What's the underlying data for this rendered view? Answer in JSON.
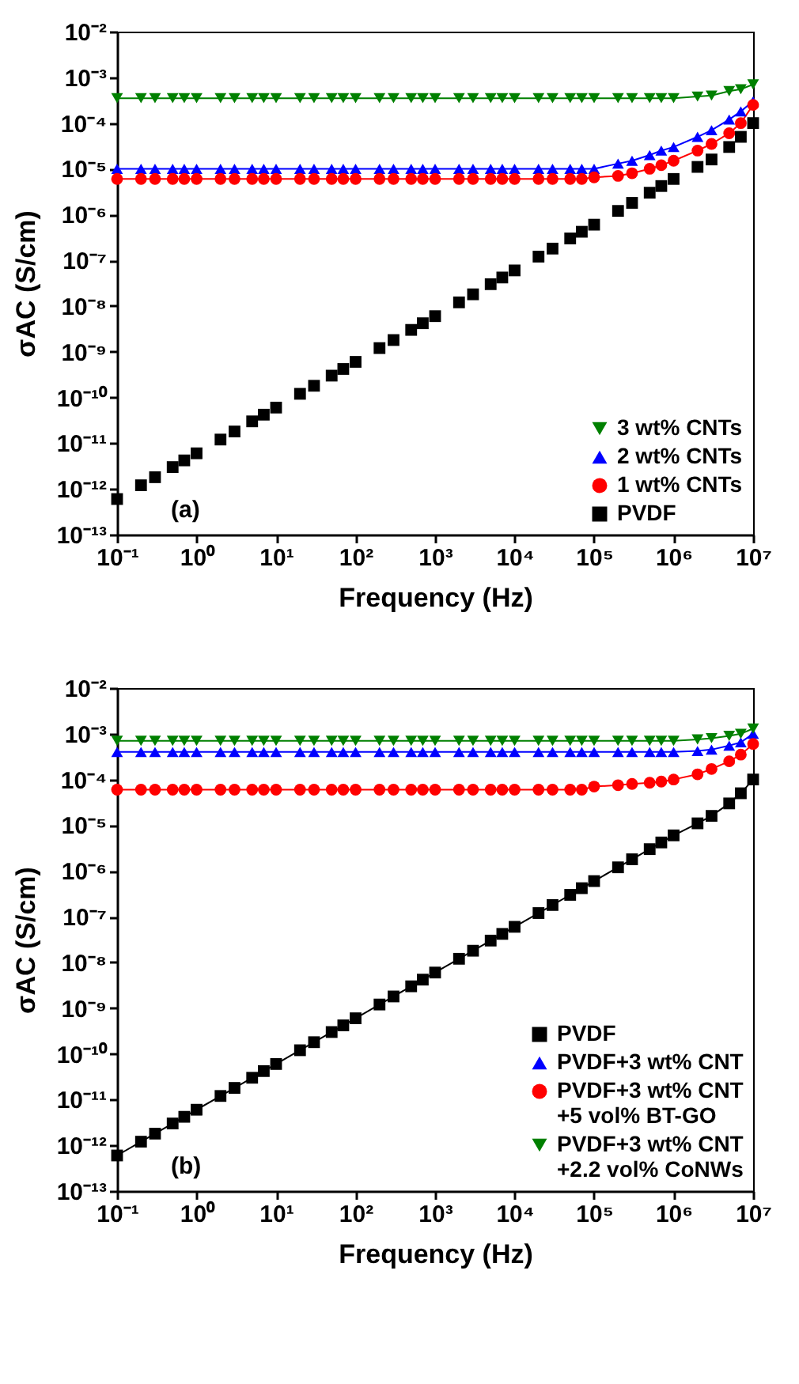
{
  "chart_data": [
    {
      "type": "line",
      "xlabel": "Frequency (Hz)",
      "ylabel": "σAC (S/cm)",
      "log": "xy",
      "grid": false,
      "legend": "bottom right",
      "annotations": [
        "(a)"
      ],
      "xlim": [
        0.1,
        10000000
      ],
      "ylim": [
        1e-13,
        0.01
      ],
      "xticks": [
        {
          "value": 0.1,
          "label": "10⁻¹"
        },
        {
          "value": 1,
          "label": "10⁰"
        },
        {
          "value": 10,
          "label": "10¹"
        },
        {
          "value": 100,
          "label": "10²"
        },
        {
          "value": 1000,
          "label": "10³"
        },
        {
          "value": 10000,
          "label": "10⁴"
        },
        {
          "value": 100000,
          "label": "10⁵"
        },
        {
          "value": 1000000,
          "label": "10⁶"
        },
        {
          "value": 10000000,
          "label": "10⁷"
        }
      ],
      "yticks": [
        {
          "value": 1e-13,
          "label": "10⁻¹³"
        },
        {
          "value": 1e-12,
          "label": "10⁻¹²"
        },
        {
          "value": 1e-11,
          "label": "10⁻¹¹"
        },
        {
          "value": 1e-10,
          "label": "10⁻¹⁰"
        },
        {
          "value": 1e-09,
          "label": "10⁻⁹"
        },
        {
          "value": 1e-08,
          "label": "10⁻⁸"
        },
        {
          "value": 1e-07,
          "label": "10⁻⁷"
        },
        {
          "value": 1e-06,
          "label": "10⁻⁶"
        },
        {
          "value": 1e-05,
          "label": "10⁻⁵"
        },
        {
          "value": 0.0001,
          "label": "10⁻⁴"
        },
        {
          "value": 0.001,
          "label": "10⁻³"
        },
        {
          "value": 0.01,
          "label": "10⁻²"
        }
      ],
      "x": [
        0.1,
        0.2,
        0.3,
        0.5,
        0.7,
        1,
        2,
        3,
        5,
        7,
        10,
        20,
        30,
        50,
        70,
        100,
        200,
        300,
        500,
        700,
        1000,
        2000,
        3000,
        5000,
        7000,
        10000,
        20000,
        30000,
        50000,
        70000,
        100000,
        200000,
        300000,
        500000,
        700000,
        1000000,
        2000000,
        3000000,
        5000000,
        7000000,
        10000000
      ],
      "series": [
        {
          "name": "3 wt% CNTs",
          "type": "line",
          "color": "#008000",
          "marker": "triangle-down",
          "line_style": "solid",
          "values": [
            0.00035,
            0.00035,
            0.00035,
            0.00035,
            0.00035,
            0.00035,
            0.00035,
            0.00035,
            0.00035,
            0.00035,
            0.00035,
            0.00035,
            0.00035,
            0.00035,
            0.00035,
            0.00035,
            0.00035,
            0.00035,
            0.00035,
            0.00035,
            0.00035,
            0.00035,
            0.00035,
            0.00035,
            0.00035,
            0.00035,
            0.00035,
            0.00035,
            0.00035,
            0.00035,
            0.00035,
            0.00035,
            0.00035,
            0.00035,
            0.00035,
            0.00035,
            0.00038,
            0.0004,
            0.0005,
            0.00055,
            0.0007
          ]
        },
        {
          "name": "2 wt% CNTs",
          "type": "line",
          "color": "#0000ff",
          "marker": "triangle",
          "line_style": "solid",
          "values": [
            1e-05,
            1e-05,
            1e-05,
            1e-05,
            1e-05,
            1e-05,
            1e-05,
            1e-05,
            1e-05,
            1e-05,
            1e-05,
            1e-05,
            1e-05,
            1e-05,
            1e-05,
            1e-05,
            1e-05,
            1e-05,
            1e-05,
            1e-05,
            1e-05,
            1e-05,
            1e-05,
            1e-05,
            1e-05,
            1e-05,
            1e-05,
            1e-05,
            1e-05,
            1e-05,
            1e-05,
            1.3e-05,
            1.5e-05,
            2e-05,
            2.5e-05,
            3e-05,
            5e-05,
            7e-05,
            0.00012,
            0.00018,
            0.0003
          ]
        },
        {
          "name": "1 wt% CNTs",
          "type": "line",
          "color": "#ff0000",
          "marker": "circle",
          "line_style": "solid",
          "values": [
            6e-06,
            6e-06,
            6e-06,
            6e-06,
            6e-06,
            6e-06,
            6e-06,
            6e-06,
            6e-06,
            6e-06,
            6e-06,
            6e-06,
            6e-06,
            6e-06,
            6e-06,
            6e-06,
            6e-06,
            6e-06,
            6e-06,
            6e-06,
            6e-06,
            6e-06,
            6e-06,
            6e-06,
            6e-06,
            6e-06,
            6e-06,
            6e-06,
            6e-06,
            6e-06,
            6.5e-06,
            7e-06,
            8e-06,
            1e-05,
            1.2e-05,
            1.5e-05,
            2.5e-05,
            3.5e-05,
            6e-05,
            0.0001,
            0.00025
          ]
        },
        {
          "name": "PVDF",
          "type": "scatter",
          "color": "#000000",
          "marker": "square",
          "values": [
            6e-13,
            1.2e-12,
            1.8e-12,
            3e-12,
            4.2e-12,
            6e-12,
            1.2e-11,
            1.8e-11,
            3e-11,
            4.2e-11,
            6e-11,
            1.2e-10,
            1.8e-10,
            3e-10,
            4.2e-10,
            6e-10,
            1.2e-09,
            1.8e-09,
            3e-09,
            4.2e-09,
            6e-09,
            1.2e-08,
            1.8e-08,
            3e-08,
            4.2e-08,
            6e-08,
            1.2e-07,
            1.8e-07,
            3e-07,
            4.2e-07,
            6e-07,
            1.2e-06,
            1.8e-06,
            3e-06,
            4.2e-06,
            6e-06,
            1.1e-05,
            1.6e-05,
            3e-05,
            5e-05,
            0.0001
          ]
        }
      ]
    },
    {
      "type": "line",
      "xlabel": "Frequency (Hz)",
      "ylabel": "σAC (S/cm)",
      "log": "xy",
      "grid": false,
      "legend": "bottom right",
      "annotations": [
        "(b)"
      ],
      "xlim": [
        0.1,
        10000000
      ],
      "ylim": [
        1e-13,
        0.01
      ],
      "xticks": [
        {
          "value": 0.1,
          "label": "10⁻¹"
        },
        {
          "value": 1,
          "label": "10⁰"
        },
        {
          "value": 10,
          "label": "10¹"
        },
        {
          "value": 100,
          "label": "10²"
        },
        {
          "value": 1000,
          "label": "10³"
        },
        {
          "value": 10000,
          "label": "10⁴"
        },
        {
          "value": 100000,
          "label": "10⁵"
        },
        {
          "value": 1000000,
          "label": "10⁶"
        },
        {
          "value": 10000000,
          "label": "10⁷"
        }
      ],
      "yticks": [
        {
          "value": 1e-13,
          "label": "10⁻¹³"
        },
        {
          "value": 1e-12,
          "label": "10⁻¹²"
        },
        {
          "value": 1e-11,
          "label": "10⁻¹¹"
        },
        {
          "value": 1e-10,
          "label": "10⁻¹⁰"
        },
        {
          "value": 1e-09,
          "label": "10⁻⁹"
        },
        {
          "value": 1e-08,
          "label": "10⁻⁸"
        },
        {
          "value": 1e-07,
          "label": "10⁻⁷"
        },
        {
          "value": 1e-06,
          "label": "10⁻⁶"
        },
        {
          "value": 1e-05,
          "label": "10⁻⁵"
        },
        {
          "value": 0.0001,
          "label": "10⁻⁴"
        },
        {
          "value": 0.001,
          "label": "10⁻³"
        },
        {
          "value": 0.01,
          "label": "10⁻²"
        }
      ],
      "x": [
        0.1,
        0.2,
        0.3,
        0.5,
        0.7,
        1,
        2,
        3,
        5,
        7,
        10,
        20,
        30,
        50,
        70,
        100,
        200,
        300,
        500,
        700,
        1000,
        2000,
        3000,
        5000,
        7000,
        10000,
        20000,
        30000,
        50000,
        70000,
        100000,
        200000,
        300000,
        500000,
        700000,
        1000000,
        2000000,
        3000000,
        5000000,
        7000000,
        10000000
      ],
      "series": [
        {
          "name": "PVDF",
          "type": "line",
          "color": "#000000",
          "marker": "square",
          "line_style": "solid",
          "values": [
            6e-13,
            1.2e-12,
            1.8e-12,
            3e-12,
            4.2e-12,
            6e-12,
            1.2e-11,
            1.8e-11,
            3e-11,
            4.2e-11,
            6e-11,
            1.2e-10,
            1.8e-10,
            3e-10,
            4.2e-10,
            6e-10,
            1.2e-09,
            1.8e-09,
            3e-09,
            4.2e-09,
            6e-09,
            1.2e-08,
            1.8e-08,
            3e-08,
            4.2e-08,
            6e-08,
            1.2e-07,
            1.8e-07,
            3e-07,
            4.2e-07,
            6e-07,
            1.2e-06,
            1.8e-06,
            3e-06,
            4.2e-06,
            6e-06,
            1.1e-05,
            1.6e-05,
            3e-05,
            5e-05,
            0.0001
          ]
        },
        {
          "name": "PVDF+3 wt% CNT",
          "type": "line",
          "color": "#0000ff",
          "marker": "triangle",
          "line_style": "solid",
          "values": [
            0.0004,
            0.0004,
            0.0004,
            0.0004,
            0.0004,
            0.0004,
            0.0004,
            0.0004,
            0.0004,
            0.0004,
            0.0004,
            0.0004,
            0.0004,
            0.0004,
            0.0004,
            0.0004,
            0.0004,
            0.0004,
            0.0004,
            0.0004,
            0.0004,
            0.0004,
            0.0004,
            0.0004,
            0.0004,
            0.0004,
            0.0004,
            0.0004,
            0.0004,
            0.0004,
            0.0004,
            0.0004,
            0.0004,
            0.0004,
            0.0004,
            0.0004,
            0.00042,
            0.00045,
            0.00055,
            0.00065,
            0.001
          ]
        },
        {
          "name": "PVDF+3 wt% CNT\n+5 vol% BT-GO",
          "type": "line",
          "color": "#ff0000",
          "marker": "circle",
          "line_style": "solid",
          "values": [
            6e-05,
            6e-05,
            6e-05,
            6e-05,
            6e-05,
            6e-05,
            6e-05,
            6e-05,
            6e-05,
            6e-05,
            6e-05,
            6e-05,
            6e-05,
            6e-05,
            6e-05,
            6e-05,
            6e-05,
            6e-05,
            6e-05,
            6e-05,
            6e-05,
            6e-05,
            6e-05,
            6e-05,
            6e-05,
            6e-05,
            6e-05,
            6e-05,
            6e-05,
            6e-05,
            7e-05,
            7.5e-05,
            8e-05,
            8.5e-05,
            9e-05,
            0.0001,
            0.00013,
            0.00017,
            0.00025,
            0.00035,
            0.0006
          ]
        },
        {
          "name": "PVDF+3 wt% CNT\n+2.2 vol% CoNWs",
          "type": "line",
          "color": "#008000",
          "marker": "triangle-down",
          "line_style": "solid",
          "values": [
            0.0007,
            0.0007,
            0.0007,
            0.0007,
            0.0007,
            0.0007,
            0.0007,
            0.0007,
            0.0007,
            0.0007,
            0.0007,
            0.0007,
            0.0007,
            0.0007,
            0.0007,
            0.0007,
            0.0007,
            0.0007,
            0.0007,
            0.0007,
            0.0007,
            0.0007,
            0.0007,
            0.0007,
            0.0007,
            0.0007,
            0.0007,
            0.0007,
            0.0007,
            0.0007,
            0.0007,
            0.0007,
            0.0007,
            0.0007,
            0.0007,
            0.0007,
            0.00075,
            0.0008,
            0.0009,
            0.001,
            0.0013
          ]
        }
      ]
    }
  ]
}
